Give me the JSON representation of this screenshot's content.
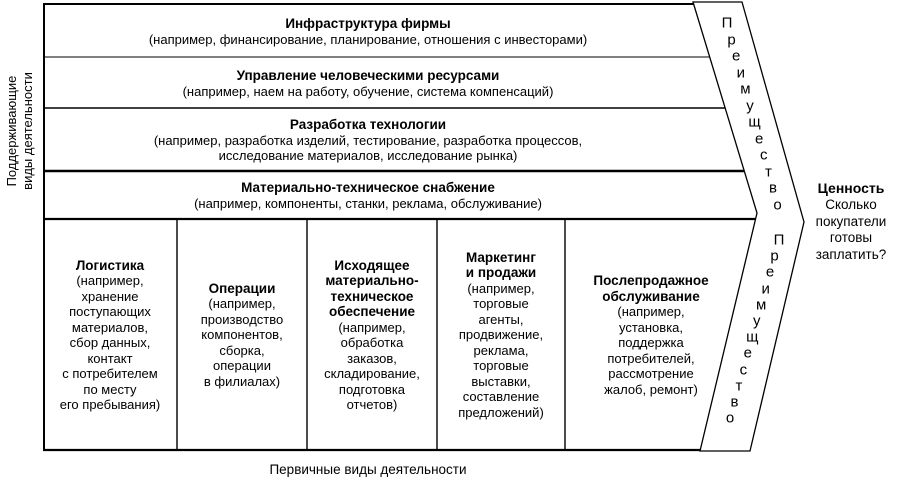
{
  "labels": {
    "support_side": [
      "Поддерживающие",
      "виды деятельности"
    ],
    "primary_bottom": "Первичные виды деятельности"
  },
  "support_rows": [
    {
      "title": "Инфраструктура фирмы",
      "desc": "(например, финансирование, планирование, отношения с инвесторами)"
    },
    {
      "title": "Управление человеческими ресурсами",
      "desc": "(например, наем на работу, обучение, система компенсаций)"
    },
    {
      "title": "Разработка технологии",
      "desc": [
        "(например, разработка изделий, тестирование, разработка процессов,",
        "исследование материалов, исследование рынка)"
      ]
    },
    {
      "title": "Материально-техническое снабжение",
      "desc": "(например, компоненты, станки, реклама, обслуживание)"
    }
  ],
  "primary_columns": [
    {
      "title": [
        "Логистика"
      ],
      "desc": [
        "(например,",
        "хранение",
        "поступающих",
        "материалов,",
        "сбор данных,",
        "контакт",
        "с потребителем",
        "по месту",
        "его пребывания)"
      ]
    },
    {
      "title": [
        "Операции"
      ],
      "desc": [
        "(например,",
        "производство",
        "компонентов,",
        "сборка,",
        "операции",
        "в филиалах)"
      ]
    },
    {
      "title": [
        "Исходящее",
        "материально-",
        "техническое",
        "обеспечение"
      ],
      "desc": [
        "(например,",
        "обработка",
        "заказов,",
        "складирование,",
        "подготовка",
        "отчетов)"
      ]
    },
    {
      "title": [
        "Маркетинг",
        "и продажи"
      ],
      "desc": [
        "(например,",
        "торговые",
        "агенты,",
        "продвижение,",
        "реклама,",
        "торговые",
        "выставки,",
        "составление",
        "предложений)"
      ]
    },
    {
      "title": [
        "Послепродажное",
        "обслуживание"
      ],
      "desc": [
        "(например,",
        "установка,",
        "поддержка",
        "потребителей,",
        "рассмотрение",
        "жалоб, ремонт)"
      ]
    }
  ],
  "advantage": {
    "word": "Преимущество"
  },
  "value_block": {
    "title": "Ценность",
    "lines": [
      "Сколько",
      "покупатели",
      "готовы",
      "заплатить?"
    ]
  },
  "colors": {
    "line": "#000000",
    "background": "#ffffff",
    "text": "#000000"
  }
}
